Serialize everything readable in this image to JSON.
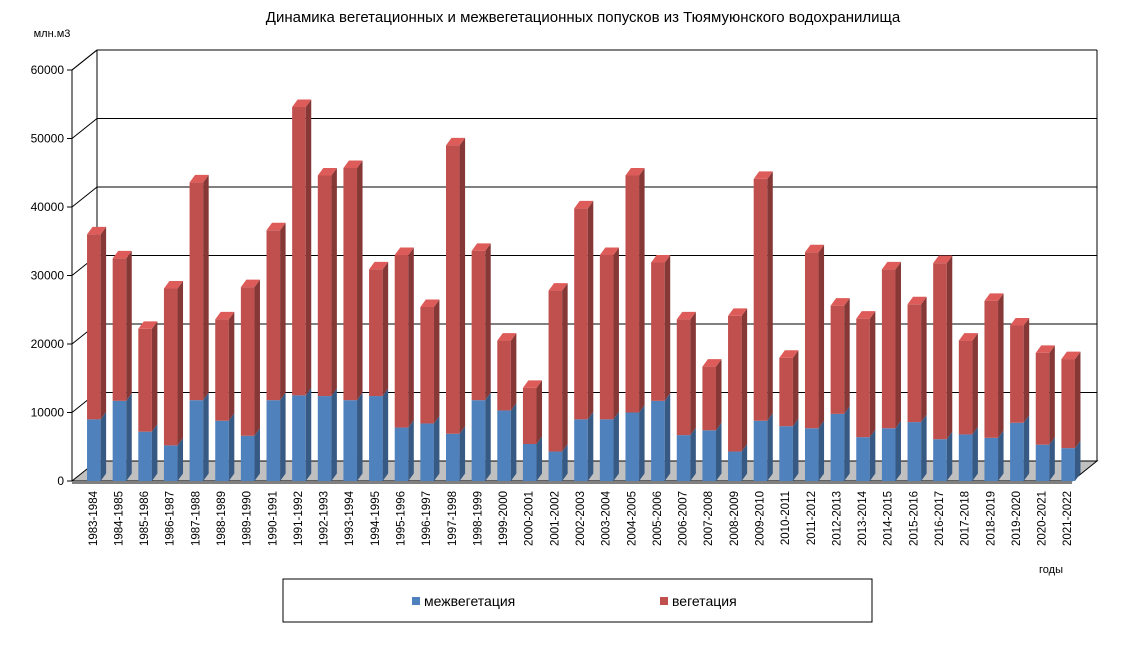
{
  "chart_data": {
    "type": "bar",
    "stacked": true,
    "title": "Динамика  вегетационных  и межвегетационных  попусков из Тюямуюнского  водохранилища",
    "ylabel": "млн.м3",
    "xlabel": "годы",
    "ylim": [
      0,
      60000
    ],
    "yticks": [
      0,
      10000,
      20000,
      30000,
      40000,
      50000,
      60000
    ],
    "grid": true,
    "legend_position": "bottom",
    "categories": [
      "1983-1984",
      "1984-1985",
      "1985-1986",
      "1986-1987",
      "1987-1988",
      "1988-1989",
      "1989-1990",
      "1990-1991",
      "1991-1992",
      "1992-1993",
      "1993-1994",
      "1994-1995",
      "1995-1996",
      "1996-1997",
      "1997-1998",
      "1998-1999",
      "1999-2000",
      "2000-2001",
      "2001-2002",
      "2002-2003",
      "2003-2004",
      "2004-2005",
      "2005-2006",
      "2006-2007",
      "2007-2008",
      "2008-2009",
      "2009-2010",
      "2010-2011",
      "2011-2012",
      "2012-2013",
      "2013-2014",
      "2014-2015",
      "2015-2016",
      "2016-2017",
      "2017-2018",
      "2018-2019",
      "2019-2020",
      "2020-2021",
      "2021-2022"
    ],
    "series": [
      {
        "name": "межвегетация",
        "color": "#4f81bd",
        "values": [
          9000,
          11700,
          7200,
          5200,
          11800,
          8800,
          6600,
          11800,
          12500,
          12400,
          11800,
          12400,
          7800,
          8400,
          6900,
          11800,
          10300,
          5400,
          4300,
          9000,
          9000,
          10000,
          11700,
          6700,
          7400,
          4300,
          8800,
          8000,
          7700,
          9800,
          6400,
          7700,
          8600,
          6100,
          6800,
          6300,
          8500,
          5300,
          4800
        ]
      },
      {
        "name": "вегетация",
        "color": "#c0504d",
        "values": [
          27000,
          20800,
          15000,
          22900,
          31800,
          14800,
          21700,
          24800,
          42100,
          32200,
          33900,
          18500,
          25200,
          17000,
          42100,
          21800,
          10200,
          8200,
          23500,
          30800,
          24000,
          34600,
          20200,
          16900,
          9300,
          19800,
          35300,
          10000,
          25700,
          15800,
          17300,
          23200,
          17200,
          25700,
          13700,
          20000,
          14200,
          13400,
          13000
        ]
      }
    ]
  }
}
